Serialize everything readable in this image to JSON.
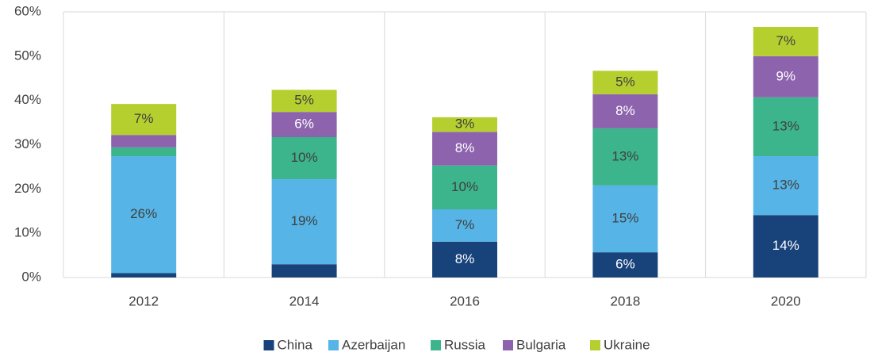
{
  "chart_data": {
    "type": "stacked_bar",
    "categories": [
      "2012",
      "2014",
      "2016",
      "2018",
      "2020"
    ],
    "series": [
      {
        "name": "China",
        "color": "#17427a",
        "label_color": "#ffffff",
        "values": [
          1.0,
          3.0,
          8.1,
          5.7,
          14.1
        ],
        "value_labels": [
          null,
          null,
          "8%",
          "6%",
          "14%"
        ]
      },
      {
        "name": "Azerbaijan",
        "color": "#56b4e6",
        "label_color": "#404040",
        "values": [
          26.4,
          19.2,
          7.3,
          15.1,
          13.3
        ],
        "value_labels": [
          "26%",
          "19%",
          "7%",
          "15%",
          "13%"
        ]
      },
      {
        "name": "Russia",
        "color": "#3cb48c",
        "label_color": "#404040",
        "values": [
          2.0,
          9.5,
          9.9,
          12.9,
          13.3
        ],
        "value_labels": [
          null,
          "10%",
          "10%",
          "13%",
          "13%"
        ]
      },
      {
        "name": "Bulgaria",
        "color": "#8d63ad",
        "label_color": "#ffffff",
        "values": [
          2.8,
          5.7,
          7.6,
          7.7,
          9.3
        ],
        "value_labels": [
          null,
          "6%",
          "8%",
          "8%",
          "9%"
        ]
      },
      {
        "name": "Ukraine",
        "color": "#b5cf2f",
        "label_color": "#404040",
        "values": [
          7.0,
          5.0,
          3.3,
          5.3,
          6.6
        ],
        "value_labels": [
          "7%",
          "5%",
          "3%",
          "5%",
          "7%"
        ]
      }
    ],
    "ylim": [
      0,
      60
    ],
    "yticks": [
      {
        "value": 0,
        "label": "0%"
      },
      {
        "value": 10,
        "label": "10%"
      },
      {
        "value": 20,
        "label": "20%"
      },
      {
        "value": 30,
        "label": "30%"
      },
      {
        "value": 40,
        "label": "40%"
      },
      {
        "value": 50,
        "label": "50%"
      },
      {
        "value": 60,
        "label": "60%"
      }
    ],
    "legend": "bottom"
  }
}
